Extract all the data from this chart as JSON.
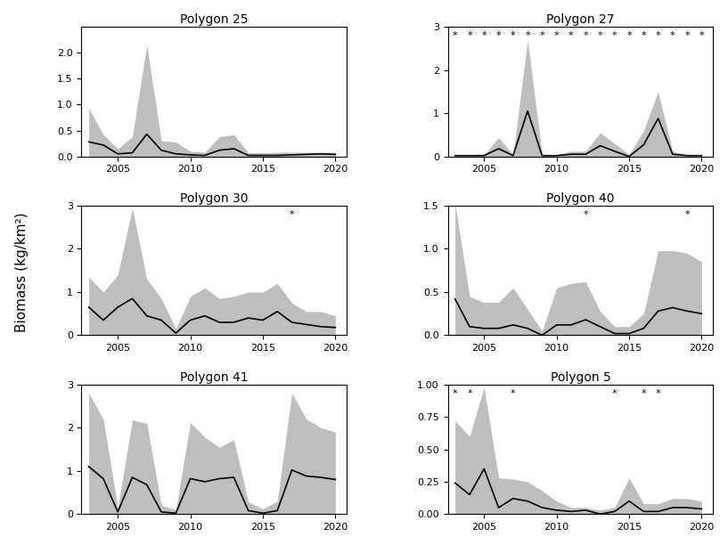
{
  "panels": [
    {
      "title": "Polygon 25",
      "years": [
        2003,
        2004,
        2005,
        2006,
        2007,
        2008,
        2009,
        2010,
        2011,
        2012,
        2013,
        2014,
        2015,
        2016,
        2017,
        2018,
        2019,
        2020
      ],
      "mean": [
        0.28,
        0.22,
        0.05,
        0.07,
        0.43,
        0.12,
        0.05,
        0.03,
        0.02,
        0.12,
        0.15,
        0.02,
        0.02,
        0.02,
        0.03,
        0.04,
        0.05,
        0.04
      ],
      "upper": [
        0.93,
        0.42,
        0.15,
        0.38,
        2.15,
        0.3,
        0.28,
        0.1,
        0.08,
        0.38,
        0.42,
        0.07,
        0.07,
        0.08,
        0.08,
        0.08,
        0.08,
        0.08
      ],
      "lower": [
        0.0,
        0.0,
        0.0,
        0.0,
        0.0,
        0.0,
        0.0,
        0.0,
        0.0,
        0.0,
        0.0,
        0.0,
        0.0,
        0.0,
        0.0,
        0.0,
        0.0,
        0.0
      ],
      "star_years": [],
      "ylim": [
        0,
        2.5
      ],
      "yticks": [
        0.0,
        0.5,
        1.0,
        1.5,
        2.0
      ],
      "yticklabels": [
        "0.0",
        "0.5",
        "1.0",
        "1.5",
        "2.0"
      ]
    },
    {
      "title": "Polygon 27",
      "years": [
        2003,
        2004,
        2005,
        2006,
        2007,
        2008,
        2009,
        2010,
        2011,
        2012,
        2013,
        2014,
        2015,
        2016,
        2017,
        2018,
        2019,
        2020
      ],
      "mean": [
        0.02,
        0.02,
        0.02,
        0.18,
        0.02,
        1.05,
        0.02,
        0.02,
        0.05,
        0.05,
        0.25,
        0.12,
        0.0,
        0.27,
        0.88,
        0.05,
        0.02,
        0.02
      ],
      "upper": [
        0.04,
        0.04,
        0.04,
        0.44,
        0.04,
        2.7,
        0.04,
        0.04,
        0.12,
        0.12,
        0.55,
        0.3,
        0.04,
        0.6,
        1.5,
        0.12,
        0.04,
        0.04
      ],
      "lower": [
        0.0,
        0.0,
        0.0,
        0.0,
        0.0,
        0.0,
        0.0,
        0.0,
        0.0,
        0.0,
        0.0,
        0.0,
        0.0,
        0.0,
        0.0,
        0.0,
        0.0,
        0.0
      ],
      "star_years": [
        2003,
        2004,
        2005,
        2006,
        2007,
        2008,
        2009,
        2010,
        2011,
        2012,
        2013,
        2014,
        2015,
        2016,
        2017,
        2018,
        2019,
        2020
      ],
      "ylim": [
        0,
        3.0
      ],
      "yticks": [
        0,
        1,
        2,
        3
      ],
      "yticklabels": [
        "0",
        "1",
        "2",
        "3"
      ]
    },
    {
      "title": "Polygon 30",
      "years": [
        2003,
        2004,
        2005,
        2006,
        2007,
        2008,
        2009,
        2010,
        2011,
        2012,
        2013,
        2014,
        2015,
        2016,
        2017,
        2018,
        2019,
        2020
      ],
      "mean": [
        0.65,
        0.35,
        0.65,
        0.85,
        0.45,
        0.35,
        0.05,
        0.35,
        0.45,
        0.3,
        0.3,
        0.4,
        0.35,
        0.55,
        0.3,
        0.25,
        0.2,
        0.18
      ],
      "upper": [
        1.35,
        1.0,
        1.4,
        2.95,
        1.3,
        0.85,
        0.15,
        0.9,
        1.1,
        0.85,
        0.9,
        1.0,
        1.0,
        1.2,
        0.75,
        0.55,
        0.55,
        0.45
      ],
      "lower": [
        0.0,
        0.0,
        0.0,
        0.0,
        0.0,
        0.0,
        0.0,
        0.0,
        0.0,
        0.0,
        0.0,
        0.0,
        0.0,
        0.0,
        0.0,
        0.0,
        0.0,
        0.0
      ],
      "star_years": [
        2017
      ],
      "ylim": [
        0,
        3.0
      ],
      "yticks": [
        0,
        1,
        2,
        3
      ],
      "yticklabels": [
        "0",
        "1",
        "2",
        "3"
      ]
    },
    {
      "title": "Polygon 40",
      "years": [
        2003,
        2004,
        2005,
        2006,
        2007,
        2008,
        2009,
        2010,
        2011,
        2012,
        2013,
        2014,
        2015,
        2016,
        2017,
        2018,
        2019,
        2020
      ],
      "mean": [
        0.42,
        0.1,
        0.08,
        0.08,
        0.12,
        0.08,
        0.0,
        0.12,
        0.12,
        0.18,
        0.1,
        0.02,
        0.02,
        0.08,
        0.28,
        0.32,
        0.28,
        0.25
      ],
      "upper": [
        1.52,
        0.45,
        0.38,
        0.38,
        0.55,
        0.3,
        0.05,
        0.55,
        0.6,
        0.62,
        0.28,
        0.1,
        0.1,
        0.25,
        0.98,
        0.98,
        0.95,
        0.85
      ],
      "lower": [
        0.0,
        0.0,
        0.0,
        0.0,
        0.0,
        0.0,
        0.0,
        0.0,
        0.0,
        0.0,
        0.0,
        0.0,
        0.0,
        0.0,
        0.0,
        0.0,
        0.0,
        0.0
      ],
      "star_years": [
        2012,
        2019
      ],
      "ylim": [
        0,
        1.5
      ],
      "yticks": [
        0.0,
        0.5,
        1.0,
        1.5
      ],
      "yticklabels": [
        "0.0",
        "0.5",
        "1.0",
        "1.5"
      ]
    },
    {
      "title": "Polygon 41",
      "years": [
        2003,
        2004,
        2005,
        2006,
        2007,
        2008,
        2009,
        2010,
        2011,
        2012,
        2013,
        2014,
        2015,
        2016,
        2017,
        2018,
        2019,
        2020
      ],
      "mean": [
        1.1,
        0.82,
        0.05,
        0.85,
        0.68,
        0.05,
        0.02,
        0.82,
        0.75,
        0.82,
        0.85,
        0.08,
        0.02,
        0.08,
        1.02,
        0.88,
        0.85,
        0.8
      ],
      "upper": [
        2.8,
        2.2,
        0.15,
        2.18,
        2.1,
        0.2,
        0.1,
        2.12,
        1.78,
        1.55,
        1.72,
        0.28,
        0.12,
        0.3,
        2.8,
        2.2,
        2.0,
        1.9
      ],
      "lower": [
        0.0,
        0.0,
        0.0,
        0.0,
        0.0,
        0.0,
        0.0,
        0.0,
        0.0,
        0.0,
        0.0,
        0.0,
        0.0,
        0.0,
        0.0,
        0.0,
        0.0,
        0.0
      ],
      "star_years": [],
      "ylim": [
        0,
        3.0
      ],
      "yticks": [
        0,
        1,
        2,
        3
      ],
      "yticklabels": [
        "0",
        "1",
        "2",
        "3"
      ]
    },
    {
      "title": "Polygon 5",
      "years": [
        2003,
        2004,
        2005,
        2006,
        2007,
        2008,
        2009,
        2010,
        2011,
        2012,
        2013,
        2014,
        2015,
        2016,
        2017,
        2018,
        2019,
        2020
      ],
      "mean": [
        0.24,
        0.15,
        0.35,
        0.05,
        0.12,
        0.1,
        0.05,
        0.03,
        0.02,
        0.03,
        0.0,
        0.02,
        0.1,
        0.02,
        0.02,
        0.05,
        0.05,
        0.04
      ],
      "upper": [
        0.72,
        0.6,
        0.98,
        0.28,
        0.27,
        0.25,
        0.18,
        0.1,
        0.05,
        0.05,
        0.03,
        0.05,
        0.28,
        0.08,
        0.08,
        0.12,
        0.12,
        0.1
      ],
      "lower": [
        0.0,
        0.0,
        0.0,
        0.0,
        0.0,
        0.0,
        0.0,
        0.0,
        0.0,
        0.0,
        0.0,
        0.0,
        0.0,
        0.0,
        0.0,
        0.0,
        0.0,
        0.0
      ],
      "star_years": [
        2003,
        2004,
        2007,
        2014,
        2016,
        2017
      ],
      "ylim": [
        0,
        1.0
      ],
      "yticks": [
        0.0,
        0.25,
        0.5,
        0.75,
        1.0
      ],
      "yticklabels": [
        "0.00",
        "0.25",
        "0.50",
        "0.75",
        "1.00"
      ]
    }
  ],
  "fill_color": "#bebebe",
  "fill_alpha": 1.0,
  "line_color": "black",
  "line_width": 1.2,
  "ylabel": "Biomass (kg/km²)",
  "xmin": 2002.5,
  "xmax": 2020.8
}
